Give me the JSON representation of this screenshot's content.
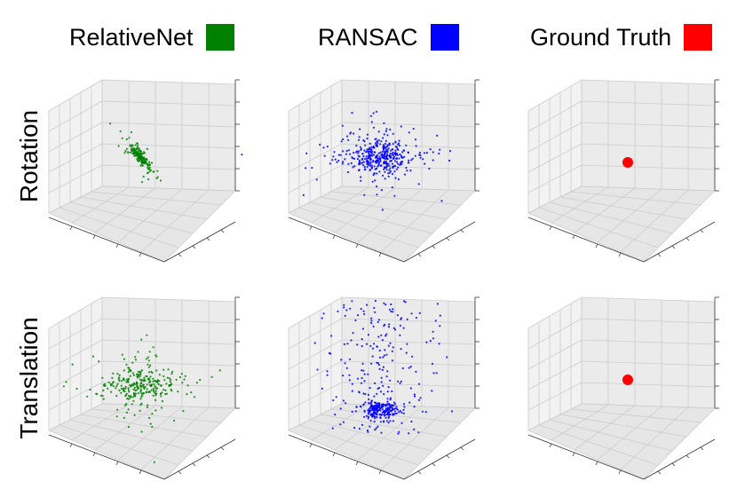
{
  "legend": [
    {
      "label": "RelativeNet",
      "color": "#008000"
    },
    {
      "label": "RANSAC",
      "color": "#0000ff"
    },
    {
      "label": "Ground Truth",
      "color": "#ff0000"
    }
  ],
  "row_labels": {
    "rotation": "Rotation",
    "translation": "Translation"
  },
  "chart_data": [
    {
      "type": "scatter",
      "row": "Rotation",
      "series": "RelativeNet",
      "color": "#008000",
      "points": 180,
      "spread": "tight",
      "center": [
        0,
        0,
        0
      ]
    },
    {
      "type": "scatter",
      "row": "Rotation",
      "series": "RANSAC",
      "color": "#0000ff",
      "points": 420,
      "spread": "medium",
      "center": [
        0,
        0,
        0
      ]
    },
    {
      "type": "scatter",
      "row": "Rotation",
      "series": "Ground Truth",
      "color": "#ff0000",
      "points": 1,
      "spread": "none",
      "center": [
        0,
        0,
        0
      ]
    },
    {
      "type": "scatter",
      "row": "Translation",
      "series": "RelativeNet",
      "color": "#008000",
      "points": 300,
      "spread": "medium",
      "center": [
        0,
        0,
        0
      ]
    },
    {
      "type": "scatter",
      "row": "Translation",
      "series": "RANSAC",
      "color": "#0000ff",
      "points": 420,
      "spread": "wide",
      "center": [
        0,
        0,
        0
      ]
    },
    {
      "type": "scatter",
      "row": "Translation",
      "series": "Ground Truth",
      "color": "#ff0000",
      "points": 1,
      "spread": "none",
      "center": [
        0,
        0,
        0
      ]
    }
  ]
}
